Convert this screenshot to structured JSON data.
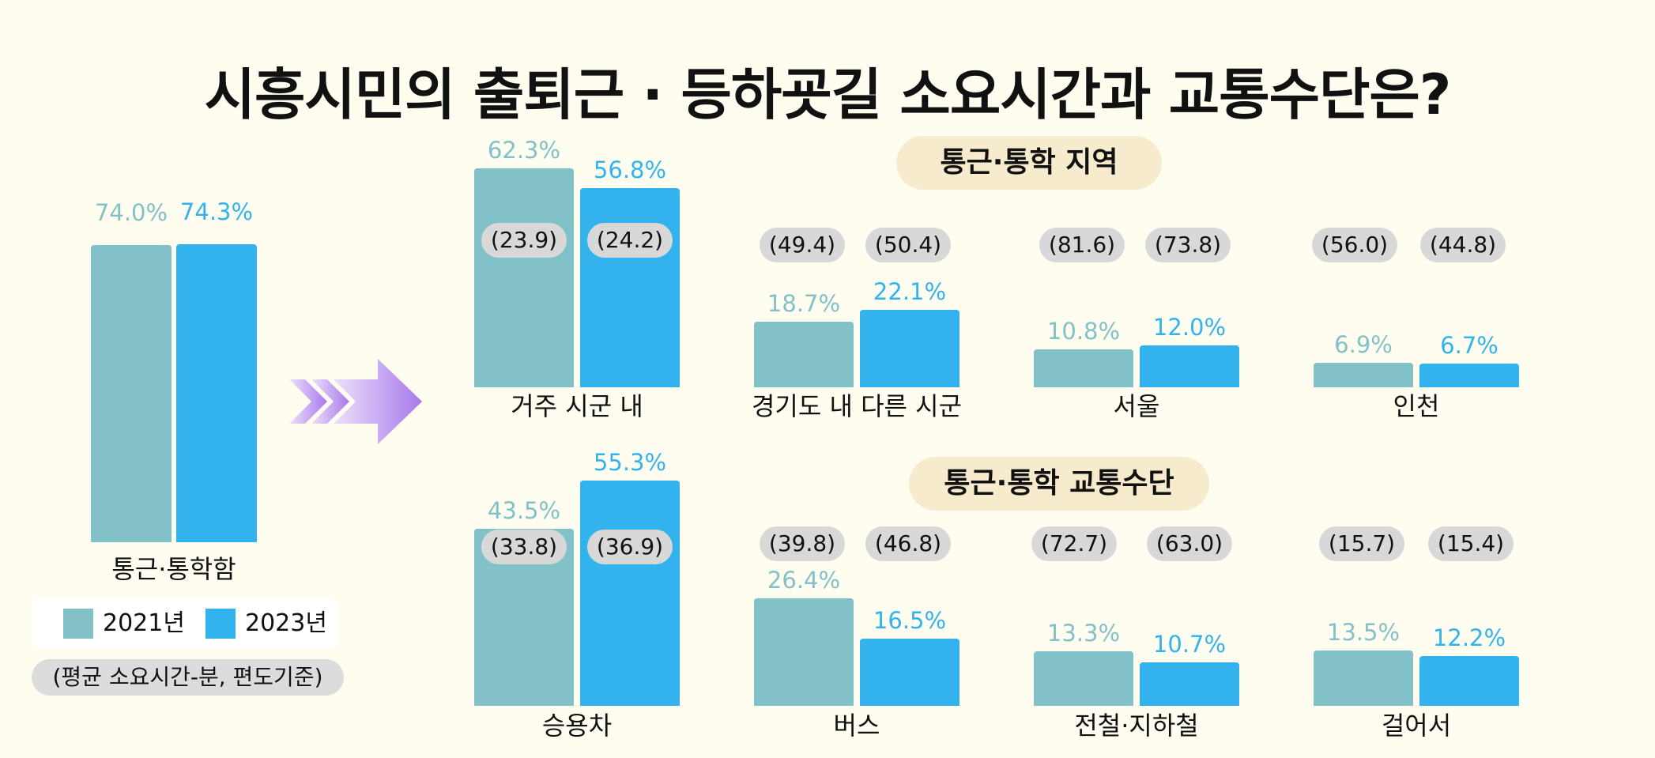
{
  "title": "시흥시민의 출퇴근 · 등하굣길 소요시간과 교통수단은?",
  "colors": {
    "y2021": "#82c1c8",
    "y2023": "#33b3ee",
    "arrow_light": "#e9dcf8",
    "arrow_dark": "#a879ec"
  },
  "legend": {
    "y2021": "2021년",
    "y2023": "2023년"
  },
  "note": "(평균 소요시간-분, 편도기준)",
  "sections": {
    "region": "통근·통학 지역",
    "transport": "통근·통학 교통수단"
  },
  "chart_data": [
    {
      "type": "bar",
      "categories": [
        "통근·통학함"
      ],
      "series": [
        {
          "name": "2021년",
          "values": [
            74.0
          ],
          "labels": [
            "74.0%"
          ]
        },
        {
          "name": "2023년",
          "values": [
            74.3
          ],
          "labels": [
            "74.3%"
          ]
        }
      ],
      "ylim": [
        0,
        100
      ]
    },
    {
      "type": "bar",
      "title": "통근·통학 지역",
      "categories": [
        "거주 시군 내",
        "경기도 내 다른 시군",
        "서울",
        "인천"
      ],
      "series": [
        {
          "name": "2021년",
          "values": [
            62.3,
            18.7,
            10.8,
            6.9
          ],
          "labels": [
            "62.3%",
            "18.7%",
            "10.8%",
            "6.9%"
          ],
          "avg_minutes": [
            "(23.9)",
            "(49.4)",
            "(81.6)",
            "(56.0)"
          ]
        },
        {
          "name": "2023년",
          "values": [
            56.8,
            22.1,
            12.0,
            6.7
          ],
          "labels": [
            "56.8%",
            "22.1%",
            "12.0%",
            "6.7%"
          ],
          "avg_minutes": [
            "(24.2)",
            "(50.4)",
            "(73.8)",
            "(44.8)"
          ]
        }
      ],
      "ylim": [
        0,
        70
      ]
    },
    {
      "type": "bar",
      "title": "통근·통학 교통수단",
      "categories": [
        "승용차",
        "버스",
        "전철·지하철",
        "걸어서"
      ],
      "series": [
        {
          "name": "2021년",
          "values": [
            43.5,
            26.4,
            13.3,
            13.5
          ],
          "labels": [
            "43.5%",
            "26.4%",
            "13.3%",
            "13.5%"
          ],
          "avg_minutes": [
            "(33.8)",
            "(39.8)",
            "(72.7)",
            "(15.7)"
          ]
        },
        {
          "name": "2023년",
          "values": [
            55.3,
            16.5,
            10.7,
            12.2
          ],
          "labels": [
            "55.3%",
            "16.5%",
            "10.7%",
            "12.2%"
          ],
          "avg_minutes": [
            "(36.9)",
            "(46.8)",
            "(63.0)",
            "(15.4)"
          ]
        }
      ],
      "ylim": [
        0,
        62
      ]
    }
  ]
}
